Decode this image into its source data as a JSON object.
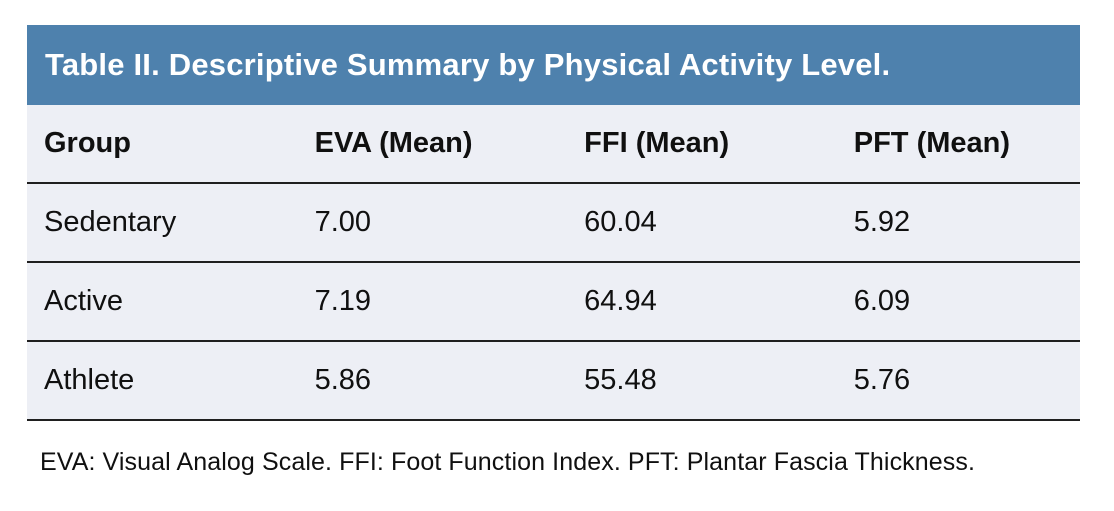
{
  "table": {
    "title": "Table II. Descriptive Summary by Physical Activity Level.",
    "columns": [
      "Group",
      "EVA (Mean)",
      "FFI (Mean)",
      "PFT (Mean)"
    ],
    "rows": [
      {
        "group": "Sedentary",
        "eva": "7.00",
        "ffi": "60.04",
        "pft": "5.92"
      },
      {
        "group": "Active",
        "eva": "7.19",
        "ffi": "64.94",
        "pft": "6.09"
      },
      {
        "group": "Athlete",
        "eva": "5.86",
        "ffi": "55.48",
        "pft": "5.76"
      }
    ],
    "footnote": "EVA: Visual Analog Scale. FFI: Foot Function Index. PFT: Plantar Fascia Thickness."
  },
  "colors": {
    "header_bg": "#4e81ad",
    "row_bg": "#edeff5",
    "line": "#1f1f1f",
    "title_text": "#ffffff",
    "body_text": "#101010"
  }
}
